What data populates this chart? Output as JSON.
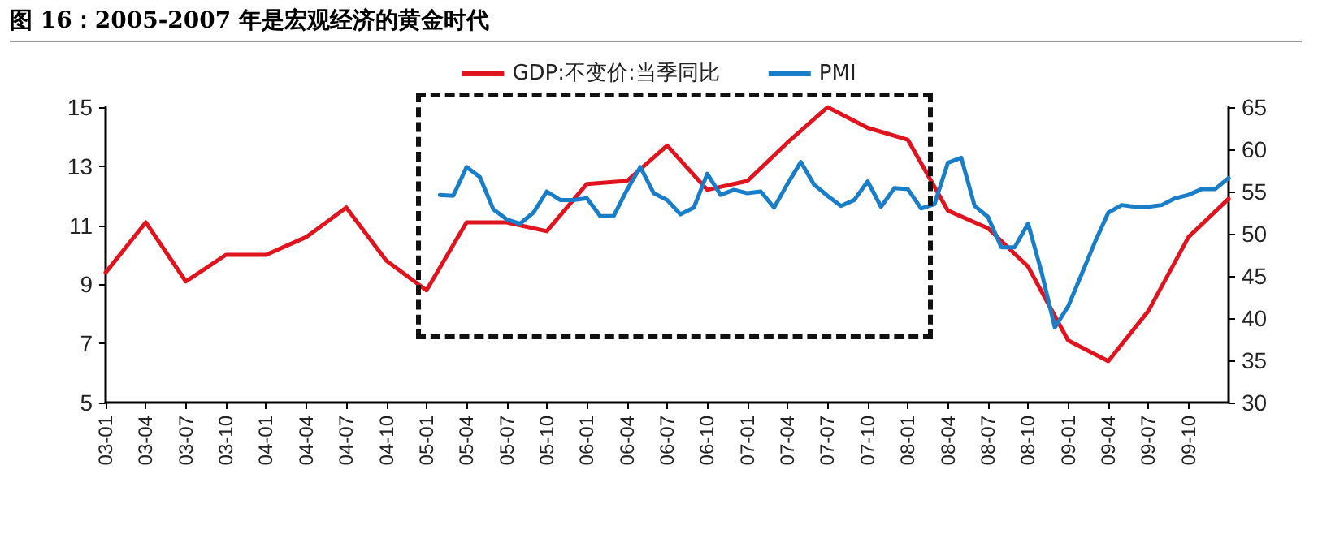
{
  "chart_data": {
    "type": "line",
    "title": "图 16：2005-2007 年是宏观经济的黄金时代",
    "categories": [
      "03-01",
      null,
      null,
      "03-04",
      null,
      null,
      "03-07",
      null,
      null,
      "03-10",
      null,
      null,
      "04-01",
      null,
      null,
      "04-04",
      null,
      null,
      "04-07",
      null,
      null,
      "04-10",
      null,
      null,
      "05-01",
      null,
      null,
      "05-04",
      null,
      null,
      "05-07",
      null,
      null,
      "05-10",
      null,
      null,
      "06-01",
      null,
      null,
      "06-04",
      null,
      null,
      "06-07",
      null,
      null,
      "06-10",
      null,
      null,
      "07-01",
      null,
      null,
      "07-04",
      null,
      null,
      "07-07",
      null,
      null,
      "07-10",
      null,
      null,
      "08-01",
      null,
      null,
      "08-04",
      null,
      null,
      "08-07",
      null,
      null,
      "08-10",
      null,
      null,
      "09-01",
      null,
      null,
      "09-04",
      null,
      null,
      "09-07",
      null,
      null,
      "09-10",
      null,
      null,
      null
    ],
    "series": [
      {
        "name": "GDP:不变价:当季同比",
        "color": "#e0141e",
        "values": [
          9.4,
          null,
          null,
          11.1,
          null,
          null,
          9.1,
          null,
          null,
          10.0,
          null,
          null,
          10.0,
          null,
          null,
          10.6,
          null,
          null,
          11.6,
          null,
          null,
          9.8,
          null,
          null,
          8.8,
          null,
          null,
          11.1,
          null,
          null,
          11.1,
          null,
          null,
          10.8,
          null,
          null,
          12.4,
          null,
          null,
          12.5,
          null,
          null,
          13.7,
          null,
          null,
          12.2,
          null,
          null,
          12.5,
          null,
          null,
          13.8,
          null,
          null,
          15.0,
          null,
          null,
          14.3,
          null,
          null,
          13.9,
          null,
          null,
          11.5,
          null,
          null,
          10.9,
          null,
          null,
          9.6,
          null,
          null,
          7.1,
          null,
          null,
          6.4,
          null,
          null,
          8.1,
          null,
          null,
          10.6,
          null,
          null,
          11.9
        ]
      },
      {
        "name": "PMI",
        "color": "#1a7dc8",
        "axis": "y2",
        "values": [
          null,
          null,
          null,
          null,
          null,
          null,
          null,
          null,
          null,
          null,
          null,
          null,
          null,
          null,
          null,
          null,
          null,
          null,
          null,
          null,
          null,
          null,
          null,
          null,
          null,
          54.6,
          54.5,
          57.9,
          56.7,
          52.9,
          51.7,
          51.2,
          52.5,
          55.0,
          54.0,
          54.0,
          54.2,
          52.1,
          52.1,
          55.2,
          57.9,
          54.8,
          54.0,
          52.3,
          53.1,
          57.1,
          54.6,
          55.2,
          54.8,
          55.0,
          53.1,
          55.9,
          58.5,
          55.8,
          54.5,
          53.3,
          54.0,
          56.2,
          53.2,
          55.4,
          55.3,
          53.0,
          53.5,
          58.4,
          59.0,
          53.3,
          52.0,
          48.4,
          48.4,
          51.2,
          45.5,
          38.9,
          41.4,
          45.2,
          49.0,
          52.5,
          53.4,
          53.2,
          53.2,
          53.4,
          54.2,
          54.6,
          55.3,
          55.3,
          56.6
        ]
      }
    ],
    "ylim": [
      5,
      15
    ],
    "yticks": [
      5,
      7,
      9,
      11,
      13,
      15
    ],
    "y2lim": [
      30,
      65
    ],
    "y2ticks": [
      30,
      35,
      40,
      45,
      50,
      55,
      60,
      65
    ],
    "legend": "top",
    "grid": false,
    "marker": "none",
    "line_style": "solid"
  }
}
